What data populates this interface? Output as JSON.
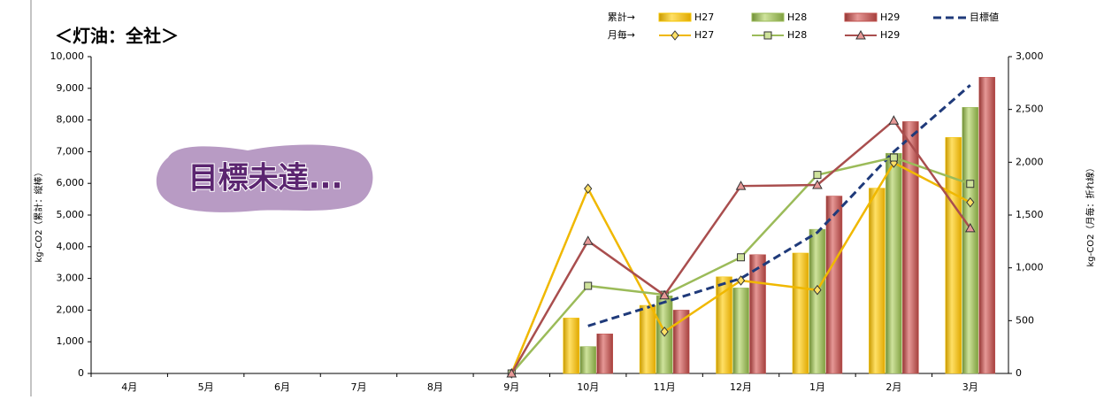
{
  "chart_data": {
    "type": "bar",
    "title": "＜灯油：全社＞",
    "y_label": "kg-CO2（累計：縦棒）",
    "y2_label": "kg-CO2（月毎：折れ線）",
    "legend_labels": [
      "累計→",
      "月毎→"
    ],
    "annotation": "目標未達...",
    "categories": [
      "4月",
      "5月",
      "6月",
      "7月",
      "8月",
      "9月",
      "10月",
      "11月",
      "12月",
      "1月",
      "2月",
      "3月"
    ],
    "ylim": [
      0,
      10000
    ],
    "yticks": [
      0,
      {
        "value": 1000,
        "label": "1,000"
      },
      {
        "value": 2000,
        "label": "2,000"
      },
      {
        "value": 3000,
        "label": "3,000"
      },
      {
        "value": 4000,
        "label": "4,000"
      },
      {
        "value": 5000,
        "label": "5,000"
      },
      {
        "value": 6000,
        "label": "6,000"
      },
      {
        "value": 7000,
        "label": "7,000"
      },
      {
        "value": 8000,
        "label": "8,000"
      },
      {
        "value": 9000,
        "label": "9,000"
      },
      {
        "value": 10000,
        "label": "10,000"
      }
    ],
    "y2lim": [
      0,
      3000
    ],
    "y2ticks": [
      0,
      500,
      {
        "value": 1000,
        "label": "1,000"
      },
      {
        "value": 1500,
        "label": "1,500"
      },
      {
        "value": 2000,
        "label": "2,000"
      },
      {
        "value": 2500,
        "label": "2,500"
      },
      {
        "value": 3000,
        "label": "3,000"
      }
    ],
    "series": [
      {
        "name": "H27",
        "type": "bar",
        "color": "#f5c400",
        "values": [
          null,
          null,
          null,
          null,
          null,
          null,
          1750,
          2150,
          3050,
          3800,
          5850,
          7450
        ]
      },
      {
        "name": "H28",
        "type": "bar",
        "color": "#9bbb59",
        "values": [
          null,
          null,
          null,
          null,
          null,
          null,
          850,
          2450,
          2700,
          4550,
          6950,
          8400
        ]
      },
      {
        "name": "H29",
        "type": "bar",
        "color": "#c0504d",
        "values": [
          null,
          null,
          null,
          null,
          null,
          null,
          1250,
          2000,
          3750,
          5600,
          7950,
          9350
        ]
      },
      {
        "name": "目標値",
        "type": "line",
        "dash": true,
        "color": "#1f3a7a",
        "values": [
          null,
          null,
          null,
          null,
          null,
          null,
          1500,
          2250,
          3000,
          4450,
          7000,
          9100
        ]
      },
      {
        "name": "H27",
        "type": "line",
        "axis": "y2",
        "marker": "diamond",
        "color": "#f0b800",
        "values": [
          null,
          null,
          null,
          null,
          null,
          0,
          1750,
          395,
          880,
          790,
          1995,
          1620
        ]
      },
      {
        "name": "H28",
        "type": "line",
        "axis": "y2",
        "marker": "square",
        "color": "#9bbb59",
        "values": [
          null,
          null,
          null,
          null,
          null,
          0,
          830,
          745,
          1100,
          1880,
          2045,
          1795
        ]
      },
      {
        "name": "H29",
        "type": "line",
        "axis": "y2",
        "marker": "triangle",
        "color": "#a94e4e",
        "values": [
          null,
          null,
          null,
          null,
          null,
          0,
          1255,
          740,
          1775,
          1785,
          2395,
          1375
        ]
      }
    ]
  }
}
